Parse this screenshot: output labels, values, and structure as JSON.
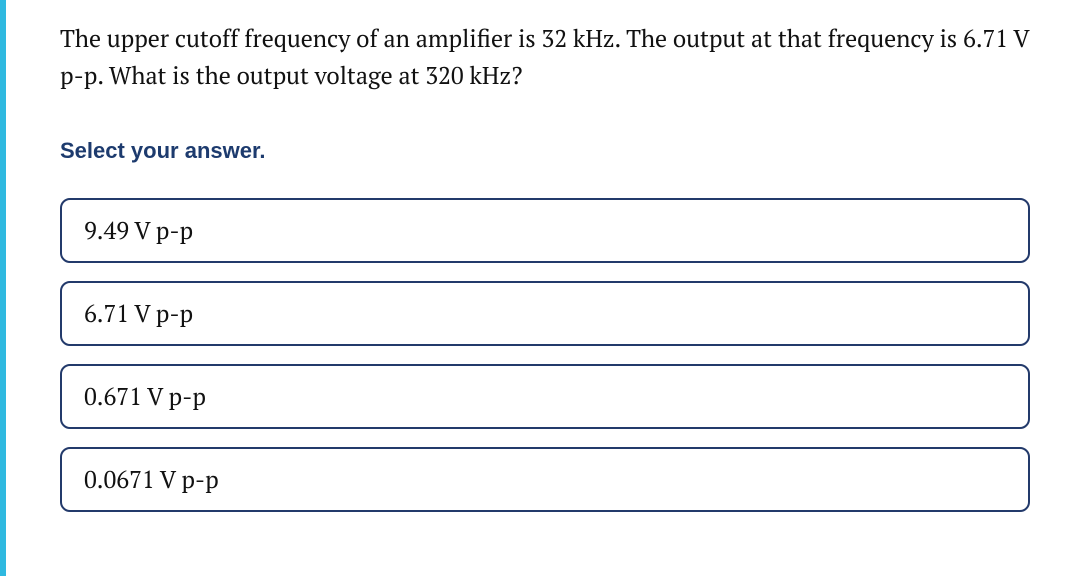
{
  "accent_color": "#2fb9e0",
  "option_border_color": "#233a6b",
  "prompt_color": "#1d3b6e",
  "text_color": "#111111",
  "background_color": "#ffffff",
  "question": {
    "text": "The upper cutoff frequency of an amplifier is 32 kHz. The output at that frequency is 6.71 V p-p. What is the output voltage at 320 kHz?",
    "fontsize": 24
  },
  "prompt": {
    "text": "Select your answer.",
    "fontsize": 22
  },
  "options": [
    {
      "label": "9.49 V p-p"
    },
    {
      "label": "6.71 V p-p"
    },
    {
      "label": "0.671 V p-p"
    },
    {
      "label": "0.0671 V p-p"
    }
  ]
}
